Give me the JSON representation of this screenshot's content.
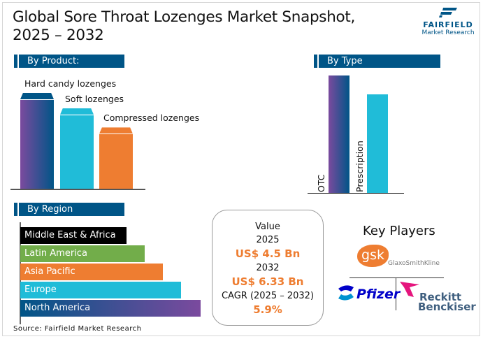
{
  "title": "Global Sore Throat Lozenges Market Snapshot,",
  "title_line2": "2025 – 2032",
  "logo": {
    "name": "FAIRFIELD",
    "sub": "Market Research"
  },
  "source": "Source: Fairfield Market Research",
  "colors": {
    "header": "#005587",
    "purple": "#7b4a9e",
    "navy": "#005587",
    "cyan": "#20bcd8",
    "orange": "#ee7d31",
    "green": "#72ad4a",
    "black": "#000000"
  },
  "chart_data": [
    {
      "type": "bar",
      "title": "By Product:",
      "categories": [
        "Hard candy lozenges",
        "Soft lozenges",
        "Compressed lozenges"
      ],
      "values": [
        100,
        84,
        64
      ]
    },
    {
      "type": "bar",
      "title": "By Type",
      "categories": [
        "OTC",
        "Prescription"
      ],
      "values": [
        100,
        84
      ]
    },
    {
      "type": "bar",
      "orientation": "horizontal",
      "title": "By Region",
      "categories": [
        "Middle East & Africa",
        "Latin America",
        "Asia Pacific",
        "Europe",
        "North America"
      ],
      "values": [
        59,
        69,
        79,
        89,
        100
      ]
    }
  ],
  "summary": {
    "value_label": "Value",
    "year1": "2025",
    "value1": "US$ 4.5 Bn",
    "year2": "2032",
    "value2": "US$ 6.33 Bn",
    "cagr_label": "CAGR (2025 – 2032)",
    "cagr": "5.9%"
  },
  "key_players": {
    "title": "Key Players",
    "players": [
      "gsk",
      "GlaxoSmithKline",
      "Pfizer",
      "Reckitt",
      "Benckiser"
    ]
  }
}
